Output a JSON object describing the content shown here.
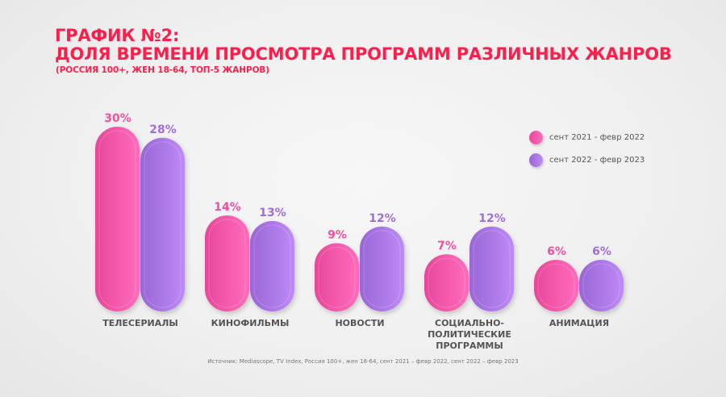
{
  "header": {
    "title_line1": "ГРАФИК №2:",
    "title_line2": "ДОЛЯ ВРЕМЕНИ ПРОСМОТРА ПРОГРАММ РАЗЛИЧНЫХ ЖАНРОВ",
    "subtitle": "(РОССИЯ 100+, ЖЕН 18-64, ТОП-5 ЖАНРОВ)"
  },
  "colors": {
    "title": "#ff1e4b",
    "series1": "#f0509e",
    "series1_light": "#ff6cbc",
    "series2": "#a06ede",
    "series2_light": "#bd8af7"
  },
  "chart_data": {
    "type": "bar",
    "title": "ДОЛЯ ВРЕМЕНИ ПРОСМОТРА ПРОГРАММ РАЗЛИЧНЫХ ЖАНРОВ",
    "xlabel": "",
    "ylabel": "",
    "categories": [
      [
        "ТЕЛЕСЕРИАЛЫ"
      ],
      [
        "КИНОФИЛЬМЫ"
      ],
      [
        "НОВОСТИ"
      ],
      [
        "СОЦИАЛЬНО-",
        "ПОЛИТИЧЕСКИЕ",
        "ПРОГРАММЫ"
      ],
      [
        "АНИМАЦИЯ"
      ]
    ],
    "series": [
      {
        "name": "сент 2021 - февр 2022",
        "values": [
          30,
          14,
          9,
          7,
          6
        ],
        "labels": [
          "30%",
          "14%",
          "9%",
          "7%",
          "6%"
        ]
      },
      {
        "name": "сент 2022 - февр 2023",
        "values": [
          28,
          13,
          12,
          12,
          6
        ],
        "labels": [
          "28%",
          "13%",
          "12%",
          "12%",
          "6%"
        ]
      }
    ],
    "unit": "%",
    "grid": false,
    "legend_position": "top-right"
  },
  "source": "Источник: Mediascope, TV Index, Россия 100+, жен 18-64, сент 2021 – февр 2022, сент 2022 – февр 2023"
}
